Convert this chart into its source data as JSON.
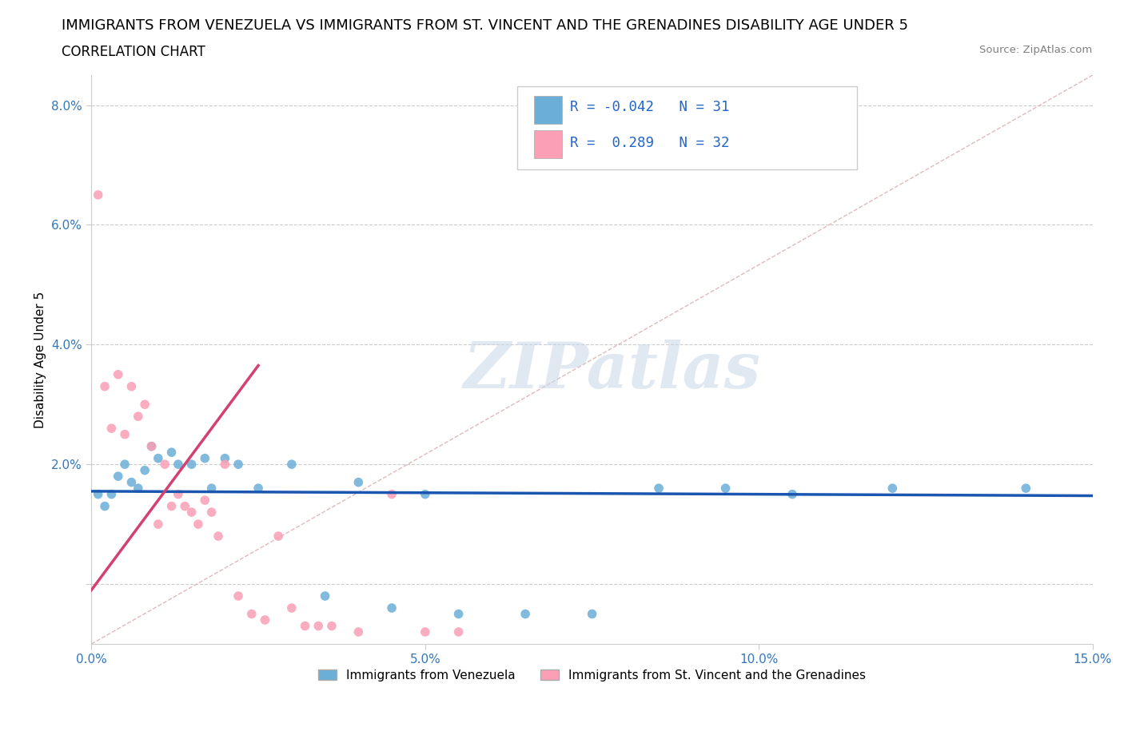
{
  "title_line1": "IMMIGRANTS FROM VENEZUELA VS IMMIGRANTS FROM ST. VINCENT AND THE GRENADINES DISABILITY AGE UNDER 5",
  "title_line2": "CORRELATION CHART",
  "source_text": "Source: ZipAtlas.com",
  "ylabel": "Disability Age Under 5",
  "watermark": "ZIPatlas",
  "xmin": 0.0,
  "xmax": 0.15,
  "ymin": -0.01,
  "ymax": 0.085,
  "xticks": [
    0.0,
    0.05,
    0.1,
    0.15
  ],
  "xtick_labels": [
    "0.0%",
    "5.0%",
    "10.0%",
    "15.0%"
  ],
  "yticks": [
    0.0,
    0.02,
    0.04,
    0.06,
    0.08
  ],
  "ytick_labels": [
    "",
    "2.0%",
    "4.0%",
    "6.0%",
    "8.0%"
  ],
  "legend_entry1": "Immigrants from Venezuela",
  "legend_entry2": "Immigrants from St. Vincent and the Grenadines",
  "R1": -0.042,
  "N1": 31,
  "R2": 0.289,
  "N2": 32,
  "color1": "#6baed6",
  "color2": "#fa9fb5",
  "trendline1_color": "#1a56b0",
  "trendline2_color": "#d44070",
  "venezuela_x": [
    0.001,
    0.002,
    0.003,
    0.004,
    0.005,
    0.006,
    0.007,
    0.008,
    0.009,
    0.01,
    0.012,
    0.013,
    0.015,
    0.017,
    0.018,
    0.02,
    0.022,
    0.025,
    0.03,
    0.035,
    0.04,
    0.045,
    0.05,
    0.055,
    0.065,
    0.075,
    0.085,
    0.095,
    0.105,
    0.12,
    0.14
  ],
  "venezuela_y": [
    0.015,
    0.013,
    0.015,
    0.018,
    0.02,
    0.017,
    0.016,
    0.019,
    0.023,
    0.021,
    0.022,
    0.02,
    0.02,
    0.021,
    0.016,
    0.021,
    0.02,
    0.016,
    0.02,
    -0.002,
    0.017,
    -0.004,
    0.015,
    -0.005,
    -0.005,
    -0.005,
    0.016,
    0.016,
    0.015,
    0.016,
    0.016
  ],
  "vincent_x": [
    0.001,
    0.002,
    0.003,
    0.004,
    0.005,
    0.006,
    0.007,
    0.008,
    0.009,
    0.01,
    0.011,
    0.012,
    0.013,
    0.014,
    0.015,
    0.016,
    0.017,
    0.018,
    0.019,
    0.02,
    0.022,
    0.024,
    0.026,
    0.028,
    0.03,
    0.032,
    0.034,
    0.036,
    0.04,
    0.045,
    0.05,
    0.055
  ],
  "vincent_y": [
    0.065,
    0.033,
    0.026,
    0.035,
    0.025,
    0.033,
    0.028,
    0.03,
    0.023,
    0.01,
    0.02,
    0.013,
    0.015,
    0.013,
    0.012,
    0.01,
    0.014,
    0.012,
    0.008,
    0.02,
    -0.002,
    -0.005,
    -0.006,
    0.008,
    -0.004,
    -0.007,
    -0.007,
    -0.007,
    -0.008,
    0.015,
    -0.008,
    -0.008
  ],
  "background_color": "#ffffff",
  "grid_color": "#cccccc",
  "title_fontsize": 13,
  "subtitle_fontsize": 12,
  "axis_label_fontsize": 11,
  "tick_fontsize": 11,
  "legend_fontsize": 11,
  "dot_size": 70
}
